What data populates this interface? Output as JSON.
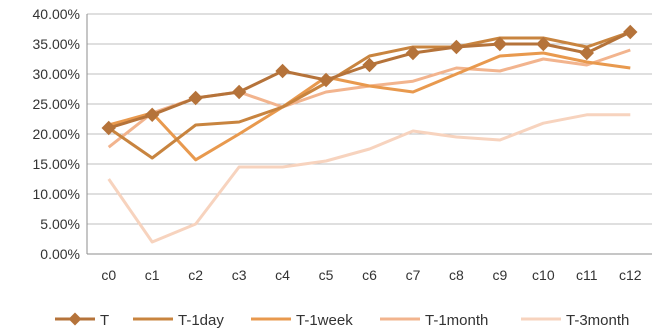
{
  "chart_data": {
    "type": "line",
    "categories": [
      "c0",
      "c1",
      "c2",
      "c3",
      "c4",
      "c5",
      "c6",
      "c7",
      "c8",
      "c9",
      "c10",
      "c11",
      "c12"
    ],
    "yticks": [
      "0.00%",
      "5.00%",
      "10.00%",
      "15.00%",
      "20.00%",
      "25.00%",
      "30.00%",
      "35.00%",
      "40.00%"
    ],
    "ylim": [
      0,
      40
    ],
    "grid": "horizontal",
    "legend_position": "bottom",
    "series": [
      {
        "name": "T",
        "color": "#B5733A",
        "marker": "diamond",
        "values": [
          21.0,
          23.2,
          26.0,
          27.0,
          30.5,
          29.0,
          31.5,
          33.5,
          34.5,
          35.0,
          35.0,
          33.5,
          37.0
        ]
      },
      {
        "name": "T-1day",
        "color": "#C8843F",
        "marker": "none",
        "values": [
          21.0,
          16.0,
          21.5,
          22.0,
          24.5,
          28.5,
          33.0,
          34.5,
          34.5,
          36.0,
          36.0,
          34.5,
          37.0
        ]
      },
      {
        "name": "T-1week",
        "color": "#E8994E",
        "marker": "none",
        "values": [
          21.5,
          23.5,
          15.7,
          20.0,
          24.5,
          29.5,
          28.0,
          27.0,
          30.0,
          33.0,
          33.5,
          32.0,
          31.0
        ]
      },
      {
        "name": "T-1month",
        "color": "#F2B48E",
        "marker": "none",
        "values": [
          17.8,
          23.5,
          26.0,
          27.0,
          24.5,
          27.0,
          28.0,
          28.8,
          31.0,
          30.5,
          32.5,
          31.5,
          34.0
        ]
      },
      {
        "name": "T-3month",
        "color": "#F7D3BE",
        "marker": "none",
        "values": [
          12.5,
          2.0,
          5.0,
          14.5,
          14.5,
          15.5,
          17.5,
          20.5,
          19.5,
          19.0,
          21.8,
          23.2,
          23.2
        ]
      }
    ]
  }
}
